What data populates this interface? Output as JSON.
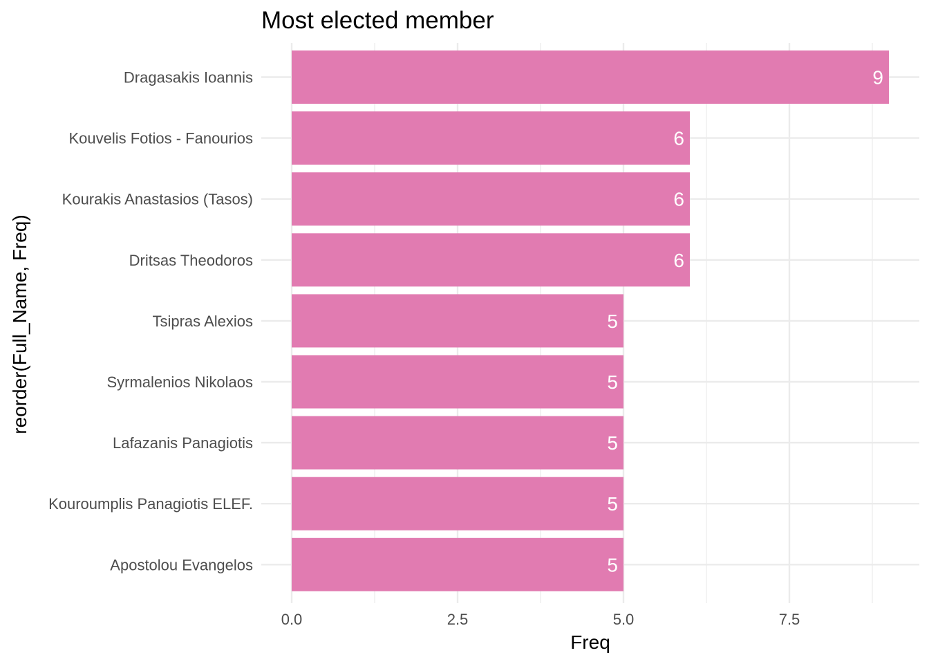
{
  "chart_data": {
    "type": "bar",
    "orientation": "horizontal",
    "title": "Most elected member",
    "xlabel": "Freq",
    "ylabel": "reorder(Full_Name, Freq)",
    "categories": [
      "Dragasakis Ioannis",
      "Kouvelis Fotios - Fanourios",
      "Kourakis Anastasios (Tasos)",
      "Dritsas Theodoros",
      "Tsipras Alexios",
      "Syrmalenios Nikolaos",
      "Lafazanis Panagiotis",
      "Kouroumplis Panagiotis ELEF.",
      "Apostolou Evangelos"
    ],
    "values": [
      9,
      6,
      6,
      6,
      5,
      5,
      5,
      5,
      5
    ],
    "data_labels": [
      "9",
      "6",
      "6",
      "6",
      "5",
      "5",
      "5",
      "5",
      "5"
    ],
    "xlim": [
      0,
      9
    ],
    "x_ticks": [
      0,
      2.5,
      5,
      7.5
    ],
    "x_tick_labels": [
      "0.0",
      "2.5",
      "5.0",
      "7.5"
    ],
    "grid": true,
    "bar_color": "#e17bb1",
    "grid_color": "#ebebeb",
    "legend": "none"
  }
}
